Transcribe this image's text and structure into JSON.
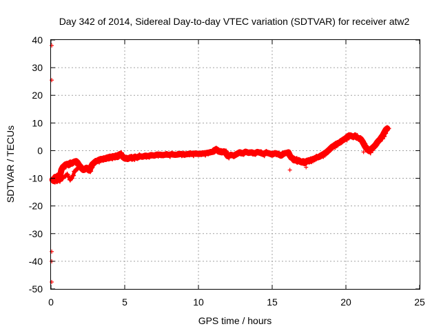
{
  "chart_data": {
    "type": "scatter",
    "title": "Day 342 of 2014, Sidereal Day-to-day VTEC variation (SDTVAR) for receiver atw2",
    "xlabel": "GPS time / hours",
    "ylabel": "SDTVAR / TECUs",
    "xlim": [
      0,
      25
    ],
    "ylim": [
      -50,
      40
    ],
    "x_ticks": [
      0,
      5,
      10,
      15,
      20,
      25
    ],
    "y_ticks": [
      -50,
      -40,
      -30,
      -20,
      -10,
      0,
      10,
      20,
      30,
      40
    ],
    "grid": true,
    "marker": "plus",
    "series": [
      {
        "name": "SDTVAR",
        "color": "#ff0000",
        "points": [
          [
            0.1,
            -10.5
          ],
          [
            0.2,
            -11.0
          ],
          [
            0.3,
            -9.5
          ],
          [
            0.4,
            -10.8
          ],
          [
            0.5,
            -9.0
          ],
          [
            0.6,
            -9.8
          ],
          [
            0.7,
            -7.0
          ],
          [
            0.8,
            -6.0
          ],
          [
            0.9,
            -5.5
          ],
          [
            1.0,
            -5.0
          ],
          [
            1.1,
            -4.8
          ],
          [
            1.2,
            -5.2
          ],
          [
            1.3,
            -4.5
          ],
          [
            1.4,
            -4.7
          ],
          [
            1.5,
            -4.2
          ],
          [
            1.6,
            -4.0
          ],
          [
            1.7,
            -3.8
          ],
          [
            1.8,
            -4.3
          ],
          [
            1.9,
            -5.2
          ],
          [
            2.0,
            -5.8
          ],
          [
            2.1,
            -6.5
          ],
          [
            2.2,
            -7.0
          ],
          [
            2.3,
            -6.8
          ],
          [
            2.4,
            -6.2
          ],
          [
            2.5,
            -6.5
          ],
          [
            2.6,
            -7.2
          ],
          [
            2.7,
            -6.0
          ],
          [
            2.8,
            -5.0
          ],
          [
            2.9,
            -4.5
          ],
          [
            3.0,
            -4.0
          ],
          [
            3.1,
            -3.8
          ],
          [
            3.2,
            -3.5
          ],
          [
            3.3,
            -3.2
          ],
          [
            3.4,
            -3.0
          ],
          [
            3.5,
            -3.2
          ],
          [
            3.6,
            -2.8
          ],
          [
            3.7,
            -3.0
          ],
          [
            3.8,
            -2.5
          ],
          [
            3.9,
            -2.8
          ],
          [
            4.0,
            -2.2
          ],
          [
            4.1,
            -2.5
          ],
          [
            4.2,
            -2.0
          ],
          [
            4.3,
            -2.4
          ],
          [
            4.4,
            -1.8
          ],
          [
            4.5,
            -2.3
          ],
          [
            4.6,
            -1.5
          ],
          [
            4.7,
            -1.2
          ],
          [
            4.8,
            -1.8
          ],
          [
            4.9,
            -2.4
          ],
          [
            5.0,
            -2.8
          ],
          [
            5.1,
            -2.6
          ],
          [
            5.2,
            -3.0
          ],
          [
            5.3,
            -2.7
          ],
          [
            5.4,
            -2.4
          ],
          [
            5.5,
            -2.8
          ],
          [
            5.6,
            -2.6
          ],
          [
            5.7,
            -2.2
          ],
          [
            5.8,
            -2.5
          ],
          [
            5.9,
            -2.3
          ],
          [
            6.0,
            -2.0
          ],
          [
            6.2,
            -2.2
          ],
          [
            6.4,
            -1.8
          ],
          [
            6.6,
            -2.0
          ],
          [
            6.8,
            -1.6
          ],
          [
            7.0,
            -1.8
          ],
          [
            7.2,
            -1.4
          ],
          [
            7.4,
            -1.5
          ],
          [
            7.6,
            -1.6
          ],
          [
            7.8,
            -1.4
          ],
          [
            8.0,
            -1.5
          ],
          [
            8.2,
            -1.3
          ],
          [
            8.4,
            -1.5
          ],
          [
            8.6,
            -1.4
          ],
          [
            8.8,
            -1.2
          ],
          [
            9.0,
            -1.4
          ],
          [
            9.2,
            -1.3
          ],
          [
            9.4,
            -1.1
          ],
          [
            9.6,
            -1.2
          ],
          [
            9.8,
            -1.0
          ],
          [
            10.0,
            -1.2
          ],
          [
            10.2,
            -1.1
          ],
          [
            10.4,
            -1.0
          ],
          [
            10.6,
            -0.8
          ],
          [
            10.8,
            -0.6
          ],
          [
            11.0,
            -0.4
          ],
          [
            11.1,
            0.2
          ],
          [
            11.2,
            0.5
          ],
          [
            11.3,
            0.1
          ],
          [
            11.4,
            -0.4
          ],
          [
            11.5,
            -0.2
          ],
          [
            11.6,
            -0.6
          ],
          [
            11.7,
            -0.3
          ],
          [
            11.8,
            -0.5
          ],
          [
            12.0,
            -2.0
          ],
          [
            12.2,
            -1.5
          ],
          [
            12.4,
            -1.8
          ],
          [
            12.6,
            -1.2
          ],
          [
            12.8,
            -0.6
          ],
          [
            13.0,
            -1.0
          ],
          [
            13.2,
            -0.4
          ],
          [
            13.4,
            -0.8
          ],
          [
            13.6,
            -0.6
          ],
          [
            13.8,
            -1.0
          ],
          [
            14.0,
            -0.5
          ],
          [
            14.2,
            -0.8
          ],
          [
            14.4,
            -1.2
          ],
          [
            14.6,
            -0.7
          ],
          [
            14.8,
            -1.0
          ],
          [
            15.0,
            -1.4
          ],
          [
            15.2,
            -0.9
          ],
          [
            15.4,
            -1.2
          ],
          [
            15.6,
            -1.8
          ],
          [
            15.8,
            -1.0
          ],
          [
            16.0,
            -0.8
          ],
          [
            16.1,
            -0.6
          ],
          [
            16.2,
            -1.8
          ],
          [
            16.3,
            -2.5
          ],
          [
            16.4,
            -2.8
          ],
          [
            16.5,
            -3.5
          ],
          [
            16.6,
            -3.2
          ],
          [
            16.7,
            -3.8
          ],
          [
            16.8,
            -3.5
          ],
          [
            16.9,
            -4.0
          ],
          [
            17.0,
            -4.2
          ],
          [
            17.1,
            -3.8
          ],
          [
            17.2,
            -4.5
          ],
          [
            17.3,
            -4.0
          ],
          [
            17.4,
            -3.6
          ],
          [
            17.5,
            -3.8
          ],
          [
            17.6,
            -3.4
          ],
          [
            17.7,
            -3.2
          ],
          [
            17.8,
            -3.0
          ],
          [
            17.9,
            -2.8
          ],
          [
            18.0,
            -2.5
          ],
          [
            18.1,
            -2.4
          ],
          [
            18.2,
            -2.2
          ],
          [
            18.3,
            -1.8
          ],
          [
            18.4,
            -1.5
          ],
          [
            18.5,
            -1.2
          ],
          [
            18.6,
            -0.8
          ],
          [
            18.7,
            -0.5
          ],
          [
            18.8,
            0.0
          ],
          [
            18.9,
            0.5
          ],
          [
            19.0,
            1.0
          ],
          [
            19.1,
            1.5
          ],
          [
            19.2,
            1.8
          ],
          [
            19.3,
            2.2
          ],
          [
            19.4,
            2.5
          ],
          [
            19.5,
            2.8
          ],
          [
            19.6,
            3.0
          ],
          [
            19.7,
            3.5
          ],
          [
            19.8,
            3.8
          ],
          [
            19.9,
            4.2
          ],
          [
            20.0,
            4.5
          ],
          [
            20.1,
            5.0
          ],
          [
            20.2,
            5.4
          ],
          [
            20.3,
            5.5
          ],
          [
            20.4,
            5.2
          ],
          [
            20.5,
            5.0
          ],
          [
            20.6,
            5.3
          ],
          [
            20.7,
            5.0
          ],
          [
            20.8,
            4.6
          ],
          [
            20.9,
            4.5
          ],
          [
            21.0,
            4.2
          ],
          [
            21.1,
            3.5
          ],
          [
            21.2,
            2.5
          ],
          [
            21.3,
            1.5
          ],
          [
            21.4,
            0.8
          ],
          [
            21.5,
            0.2
          ],
          [
            21.6,
            -0.2
          ],
          [
            21.7,
            0.5
          ],
          [
            21.8,
            1.0
          ],
          [
            21.9,
            1.5
          ],
          [
            22.0,
            2.0
          ],
          [
            22.1,
            2.8
          ],
          [
            22.2,
            3.5
          ],
          [
            22.3,
            4.0
          ],
          [
            22.4,
            4.8
          ],
          [
            22.5,
            5.5
          ],
          [
            22.6,
            6.5
          ],
          [
            22.7,
            7.5
          ],
          [
            22.8,
            8.0
          ]
        ],
        "branch_points": [
          [
            0.6,
            -11.0
          ],
          [
            0.8,
            -10.0
          ],
          [
            1.0,
            -9.0
          ],
          [
            1.1,
            -8.6
          ],
          [
            1.2,
            -9.5
          ],
          [
            1.3,
            -10.5
          ],
          [
            1.4,
            -10.0
          ],
          [
            1.5,
            -9.0
          ],
          [
            1.6,
            -7.5
          ],
          [
            1.7,
            -7.0
          ],
          [
            1.8,
            -6.5
          ],
          [
            1.9,
            -6.0
          ],
          [
            2.0,
            -6.2
          ]
        ],
        "outliers": [
          [
            0.05,
            38.0
          ],
          [
            0.05,
            25.5
          ],
          [
            0.05,
            -36.5
          ],
          [
            0.05,
            -40.0
          ],
          [
            0.05,
            -47.5
          ],
          [
            16.2,
            -7.0
          ],
          [
            17.3,
            -6.0
          ],
          [
            21.2,
            -0.5
          ]
        ]
      }
    ]
  }
}
